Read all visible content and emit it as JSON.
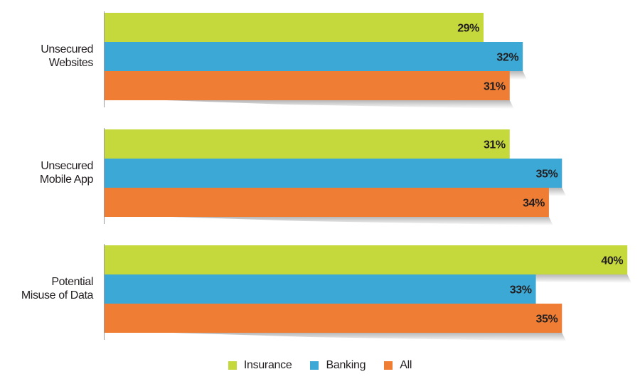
{
  "chart_data": {
    "type": "bar",
    "orientation": "horizontal",
    "categories": [
      [
        "Unsecured",
        "Websites"
      ],
      [
        "Unsecured",
        "Mobile App"
      ],
      [
        "Potential",
        "Misuse of Data"
      ]
    ],
    "series": [
      {
        "name": "Insurance",
        "color": "#c5d93c",
        "values": [
          29,
          31,
          40
        ],
        "labels": [
          "29%",
          "31%",
          "40%"
        ]
      },
      {
        "name": "Banking",
        "color": "#3ba8d6",
        "values": [
          32,
          35,
          33
        ],
        "labels": [
          "32%",
          "35%",
          "33%"
        ]
      },
      {
        "name": "All",
        "color": "#ef7d33",
        "values": [
          31,
          34,
          35
        ],
        "labels": [
          "31%",
          "34%",
          "35%"
        ]
      }
    ],
    "xlim": [
      0,
      40
    ],
    "grid": false,
    "legend_position": "bottom"
  },
  "legend": [
    {
      "label": "Insurance",
      "color": "#c5d93c"
    },
    {
      "label": "Banking",
      "color": "#3ba8d6"
    },
    {
      "label": "All",
      "color": "#ef7d33"
    }
  ]
}
